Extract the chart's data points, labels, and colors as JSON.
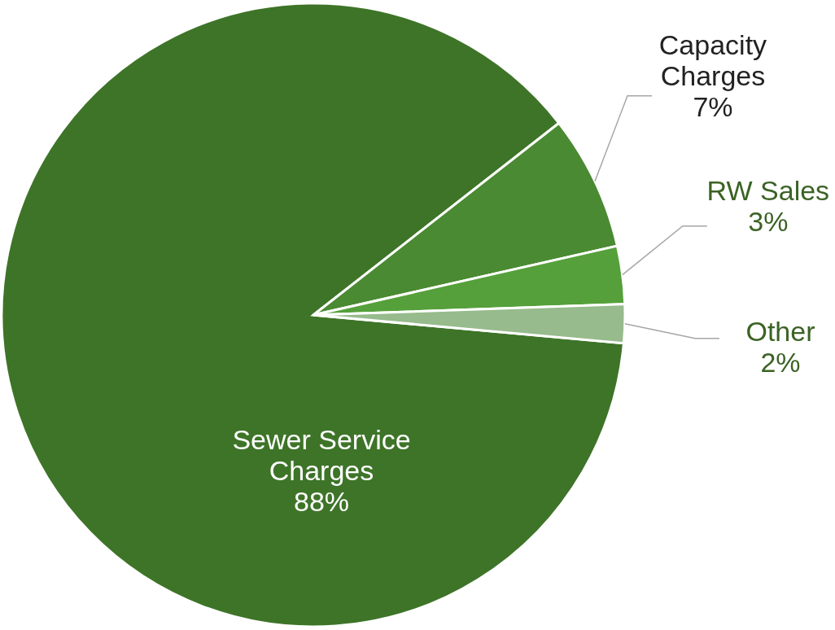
{
  "chart_data": {
    "type": "pie",
    "categories": [
      "Sewer Service Charges",
      "Capacity Charges",
      "RW Sales",
      "Other"
    ],
    "values": [
      88,
      7,
      3,
      2
    ],
    "colors": [
      "#3e7428",
      "#4a8a32",
      "#55a03a",
      "#97bb8c"
    ],
    "value_labels": [
      "88%",
      "7%",
      "3%",
      "2%"
    ],
    "legend": false
  }
}
